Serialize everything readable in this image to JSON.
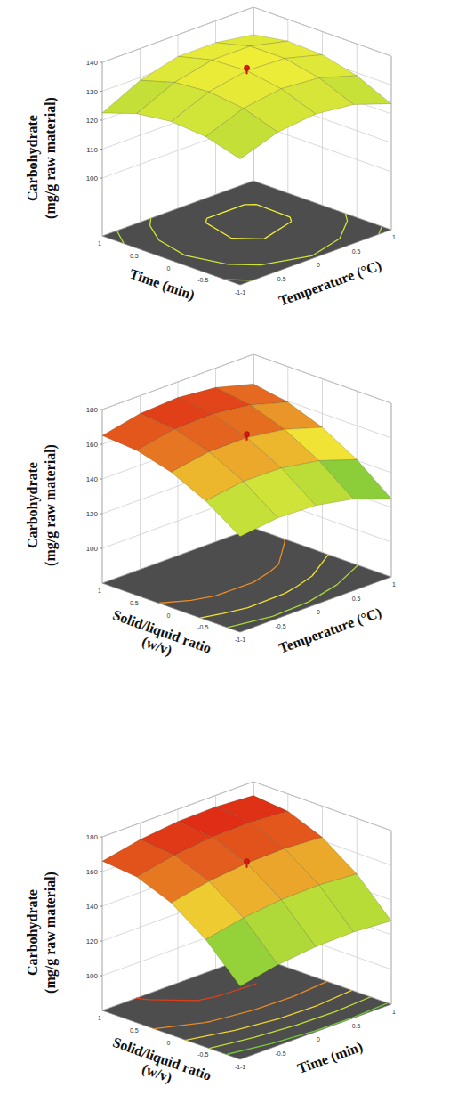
{
  "chart_data": [
    {
      "type": "surface",
      "zlabel": [
        "Carbohydrate",
        "(mg/g raw material)"
      ],
      "xlabel": "Temperature (°C)",
      "ylabel": "Time (min)",
      "x": [
        -1,
        -0.5,
        0,
        0.5,
        1
      ],
      "y": [
        -1,
        -0.5,
        0,
        0.5,
        1
      ],
      "z": [
        [
          123.5,
          128,
          129.5,
          128,
          123.5
        ],
        [
          127,
          132,
          134,
          133,
          129
        ],
        [
          128,
          133.5,
          136,
          135.5,
          132
        ],
        [
          126.5,
          132.5,
          135.5,
          135.5,
          132.5
        ],
        [
          122.5,
          129,
          132.5,
          132.5,
          130.5
        ]
      ],
      "xlim": [
        -1,
        1
      ],
      "ylim": [
        -1,
        1
      ],
      "zlim": [
        80,
        140
      ],
      "xticks": [
        -1,
        -0.5,
        0,
        0.5,
        1
      ],
      "yticks": [
        -1,
        -0.5,
        0,
        0.5,
        1
      ],
      "zticks": [
        100,
        110,
        120,
        130,
        140
      ],
      "color_range": [
        100,
        172
      ],
      "contour_levels": [
        125,
        130,
        135
      ],
      "points": {
        "x": [
          0
        ],
        "y": [
          0
        ],
        "z": [
          137
        ]
      },
      "grid": true
    },
    {
      "type": "surface",
      "zlabel": [
        "Carbohydrate",
        "(mg/g raw material)"
      ],
      "xlabel": "Temperature (°C)",
      "ylabel": [
        "Solid/liquid ratio",
        "(w/v)"
      ],
      "x": [
        -1,
        -0.5,
        0,
        0.5,
        1
      ],
      "y": [
        -1,
        -0.5,
        0,
        0.5,
        1
      ],
      "z": [
        [
          135,
          137.8,
          137,
          132.8,
          125
        ],
        [
          148.5,
          151.8,
          151.5,
          147.8,
          140.5
        ],
        [
          158,
          161.8,
          162,
          158.8,
          152
        ],
        [
          163.5,
          167.8,
          168.5,
          165.8,
          159.5
        ],
        [
          165,
          169.8,
          171,
          168.8,
          163
        ]
      ],
      "xlim": [
        -1,
        1
      ],
      "ylim": [
        -1,
        1
      ],
      "zlim": [
        80,
        180
      ],
      "xticks": [
        -1,
        -0.5,
        0,
        0.5,
        1
      ],
      "yticks": [
        -1,
        -0.5,
        0,
        0.5,
        1
      ],
      "zticks": [
        100,
        120,
        140,
        160,
        180
      ],
      "color_range": [
        125,
        172
      ],
      "contour_levels": [
        140,
        150,
        160
      ],
      "points": {
        "x": [
          0
        ],
        "y": [
          0
        ],
        "z": [
          164
        ]
      },
      "grid": true
    },
    {
      "type": "surface",
      "zlabel": [
        "Carbohydrate",
        "(mg/g raw material)"
      ],
      "xlabel": "Time (min)",
      "ylabel": [
        "Solid/liquid ratio",
        "(w/v)"
      ],
      "x": [
        -1,
        -0.5,
        0,
        0.5,
        1
      ],
      "y": [
        -1,
        -0.5,
        0,
        0.5,
        1
      ],
      "z": [
        [
          122,
          126.5,
          129,
          129.5,
          128
        ],
        [
          142,
          146.5,
          149,
          149.5,
          148
        ],
        [
          156,
          160.5,
          163,
          163.5,
          162
        ],
        [
          164,
          168.5,
          171,
          171.5,
          170
        ],
        [
          166,
          170.5,
          173,
          173.5,
          172
        ]
      ],
      "xlim": [
        -1,
        1
      ],
      "ylim": [
        -1,
        1
      ],
      "zlim": [
        80,
        180
      ],
      "xticks": [
        -1,
        -0.5,
        0,
        0.5,
        1
      ],
      "yticks": [
        -1,
        -0.5,
        0,
        0.5,
        1
      ],
      "zticks": [
        100,
        120,
        140,
        160,
        180
      ],
      "color_range": [
        120,
        173
      ],
      "contour_levels": [
        130,
        140,
        150,
        160,
        170
      ],
      "points": {
        "x": [
          0
        ],
        "y": [
          0
        ],
        "z": [
          164
        ]
      },
      "grid": true
    }
  ]
}
